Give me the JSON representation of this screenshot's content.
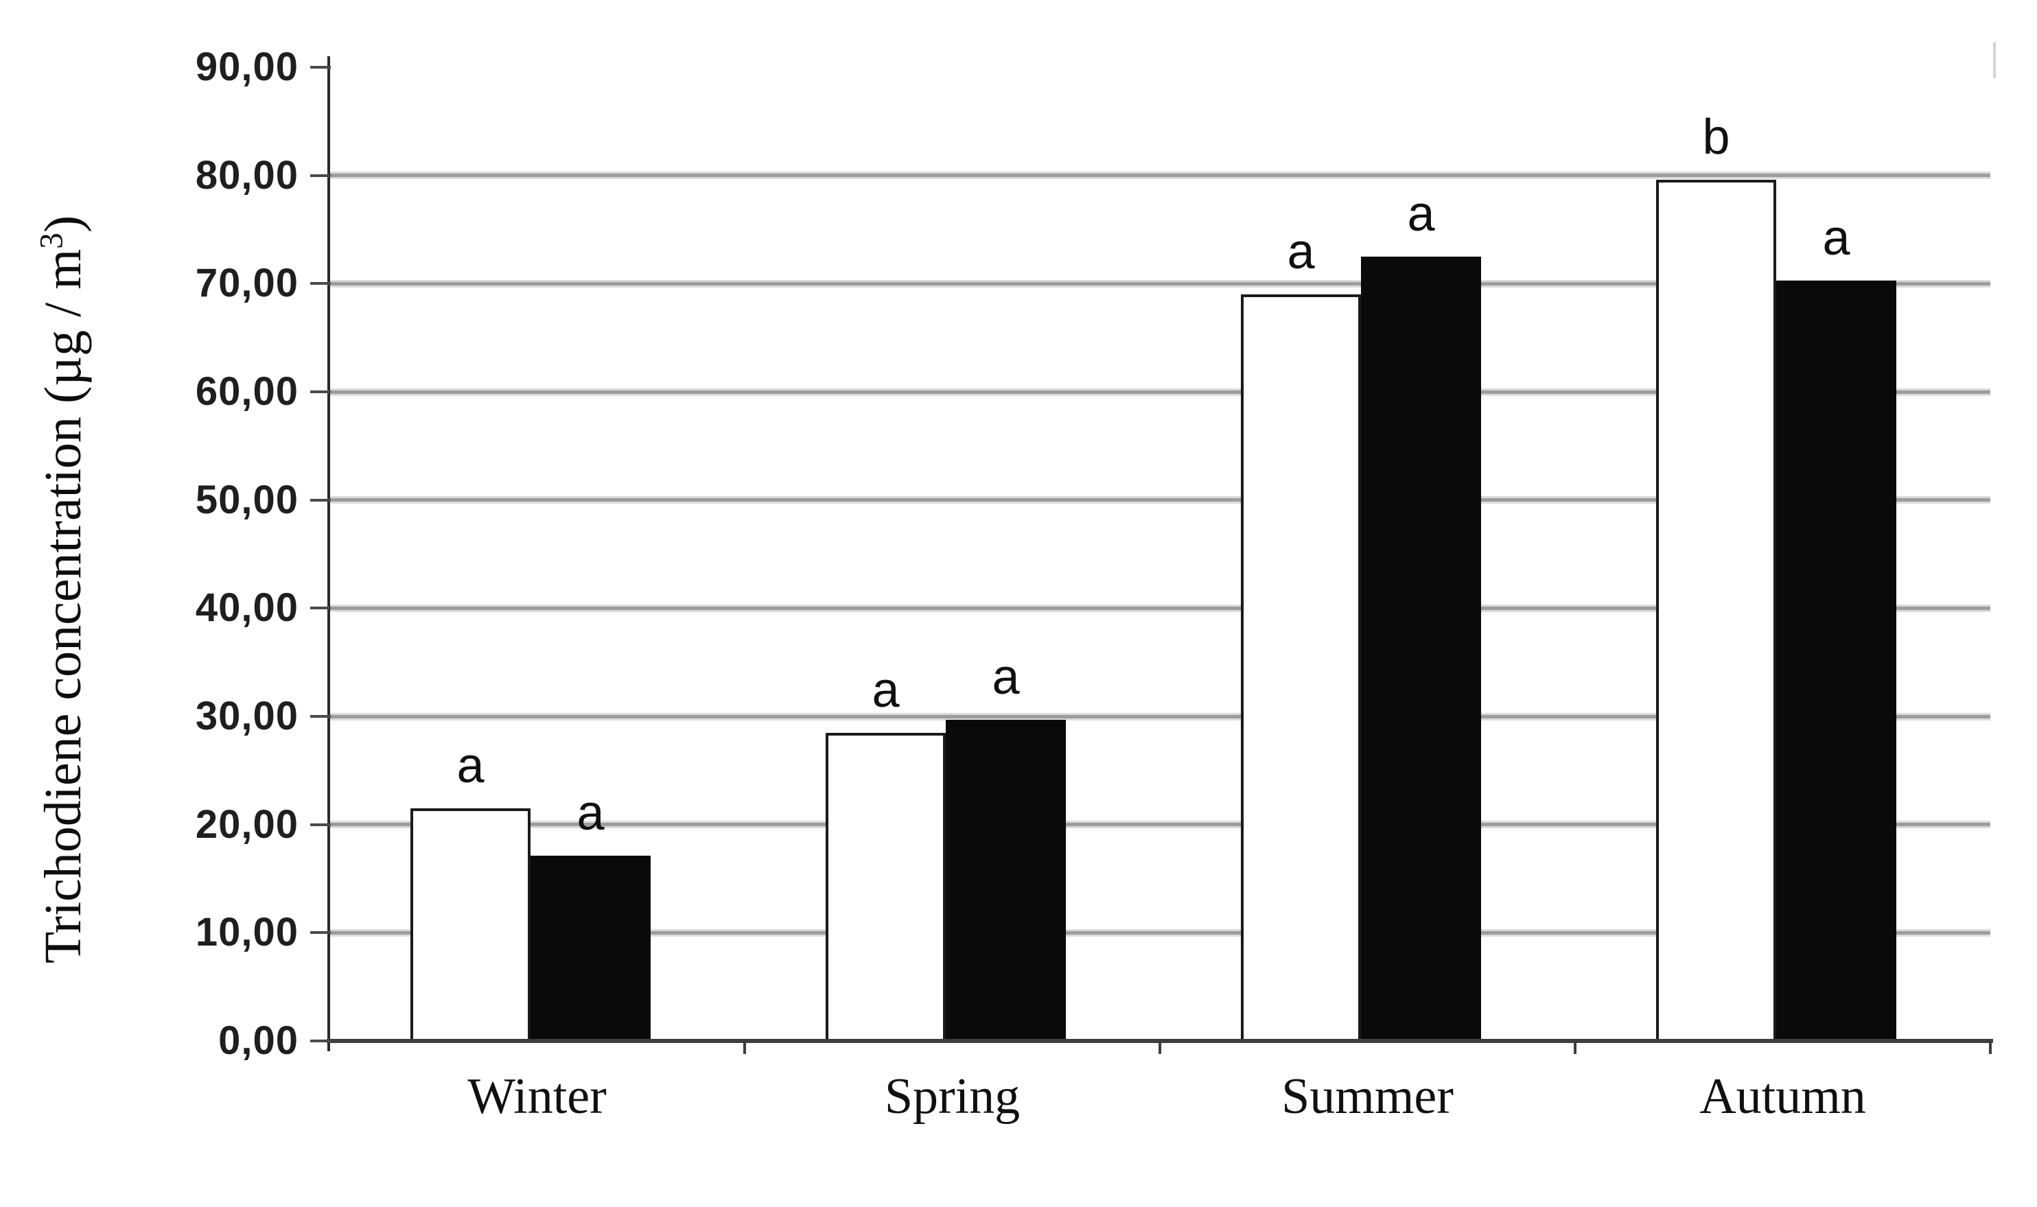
{
  "chart_data": {
    "type": "bar",
    "title": "",
    "xlabel": "",
    "ylabel": "Trichodiene concentration (µg / m³)",
    "ylabel_parts": {
      "pre": "Trichodiene concentration (µg / m",
      "sup": "3",
      "post": ")"
    },
    "categories": [
      "Winter",
      "Spring",
      "Summer",
      "Autumn"
    ],
    "series": [
      {
        "name": "open-bars",
        "style": "white outlined bar",
        "fill": "#ffffff",
        "border": "#1a1a1a",
        "values": [
          21.5,
          28.5,
          69.0,
          79.6
        ],
        "sig_letters": [
          "a",
          "a",
          "a",
          "b"
        ]
      },
      {
        "name": "solid-bars",
        "style": "black filled bar",
        "fill": "#0a0a0a",
        "border": "#0a0a0a",
        "values": [
          17.1,
          29.7,
          72.5,
          70.3
        ],
        "sig_letters": [
          "a",
          "a",
          "a",
          "a"
        ]
      }
    ],
    "ylim": [
      0,
      90
    ],
    "ytick_step": 10,
    "yticks": [
      {
        "value": 90,
        "label": "90,00"
      },
      {
        "value": 80,
        "label": "80,00"
      },
      {
        "value": 70,
        "label": "70,00"
      },
      {
        "value": 60,
        "label": "60,00"
      },
      {
        "value": 50,
        "label": "50,00"
      },
      {
        "value": 40,
        "label": "40,00"
      },
      {
        "value": 30,
        "label": "30,00"
      },
      {
        "value": 20,
        "label": "20,00"
      },
      {
        "value": 10,
        "label": "10,00"
      },
      {
        "value": 0,
        "label": "0,00"
      }
    ],
    "decimal_separator": ",",
    "grid": "horizontal",
    "legend": "none",
    "colors": {
      "gridline": "#9c9c9c",
      "axis": "#2a2a2a",
      "baseline": "#3d3d3d",
      "open_bar_fill": "#ffffff",
      "open_bar_border": "#1a1a1a",
      "solid_bar_fill": "#0a0a0a",
      "text": "#101010"
    }
  }
}
